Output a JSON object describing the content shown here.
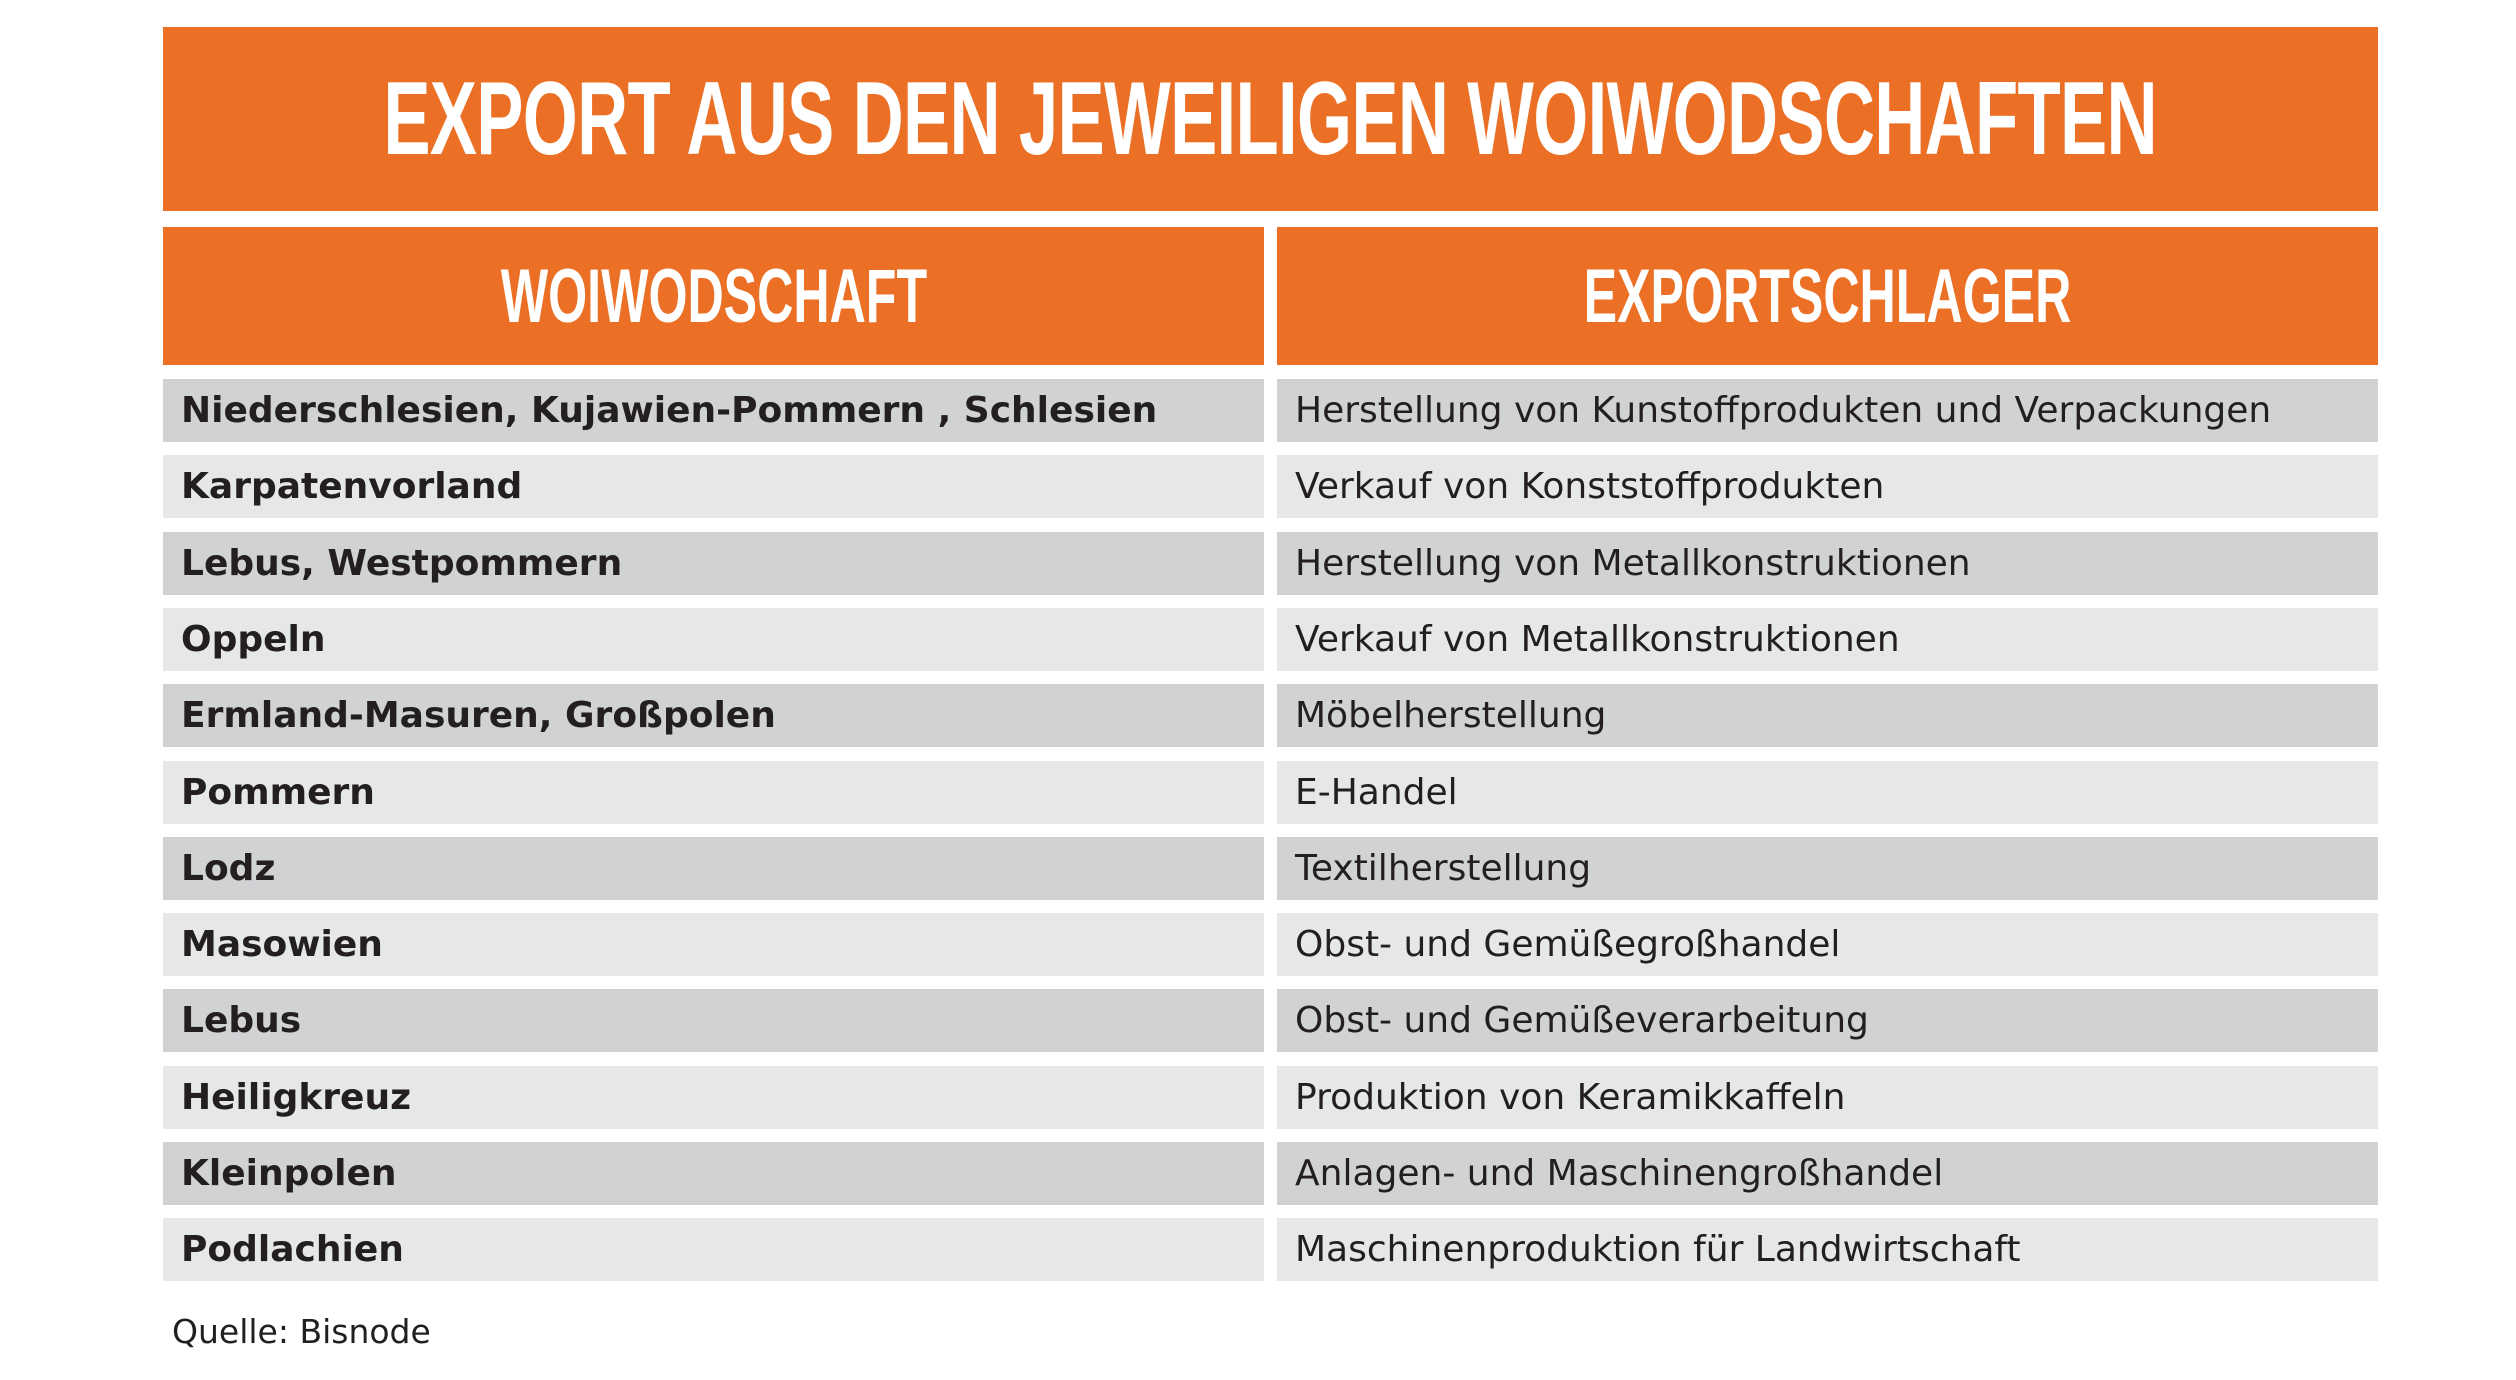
{
  "title": "EXPORT AUS DEN JEWEILIGEN WOIWODSCHAFTEN",
  "columns": [
    "WOIWODSCHAFT",
    "EXPORTSCHLAGER"
  ],
  "rows": [
    [
      "Niederschlesien, Kujawien-Pommern , Schlesien",
      "Herstellung von Kunstoffprodukten und Verpackungen"
    ],
    [
      "Karpatenvorland",
      "Verkauf von Konststoffprodukten"
    ],
    [
      "Lebus, Westpommern",
      "Herstellung von Metallkonstruktionen"
    ],
    [
      "Oppeln",
      "Verkauf von Metallkonstruktionen"
    ],
    [
      "Ermland-Masuren, Großpolen",
      "Möbelherstellung"
    ],
    [
      "Pommern",
      "E-Handel"
    ],
    [
      "Lodz",
      "Textilherstellung"
    ],
    [
      "Masowien",
      "Obst- und Gemüßegroßhandel"
    ],
    [
      "Lebus",
      "Obst- und Gemüßeverarbeitung"
    ],
    [
      "Heiligkreuz",
      "Produktion von Keramikkaffeln"
    ],
    [
      "Kleinpolen",
      "Anlagen- und Maschinengroßhandel"
    ],
    [
      "Podlachien",
      "Maschinenproduktion für Landwirtschaft"
    ]
  ],
  "source": "Quelle: Bisnode",
  "colors": {
    "accent": "#eb7025",
    "row_dark": "#d1d2d4",
    "row_light": "#e6e7e9",
    "text": "#231f20"
  }
}
